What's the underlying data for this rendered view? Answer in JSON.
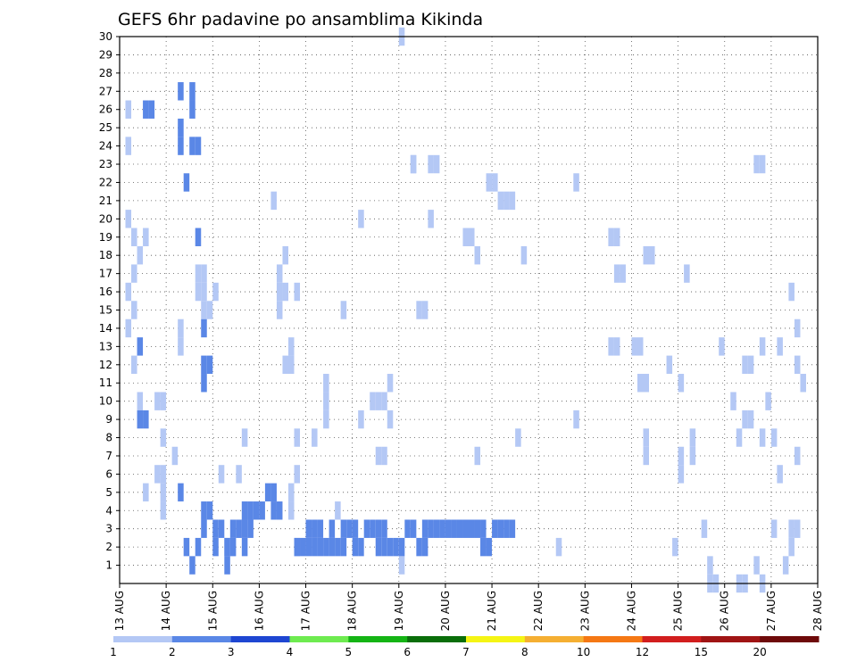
{
  "chart_data": {
    "type": "heatmap",
    "title": "GEFS 6hr padavine po ansamblima Kikinda",
    "x_axis": {
      "range": [
        "13 AUG 00Z",
        "28 AUG 00Z"
      ],
      "tick_labels": [
        "13 AUG",
        "14 AUG",
        "15 AUG",
        "16 AUG",
        "17 AUG",
        "18 AUG",
        "19 AUG",
        "20 AUG",
        "21 AUG",
        "22 AUG",
        "23 AUG",
        "24 AUG",
        "25 AUG",
        "26 AUG",
        "27 AUG",
        "28 AUG"
      ],
      "step_hours": 6
    },
    "y_axis": {
      "range": [
        0,
        30
      ],
      "tick_labels": [
        "1",
        "2",
        "3",
        "4",
        "5",
        "6",
        "7",
        "8",
        "9",
        "10",
        "11",
        "12",
        "13",
        "14",
        "15",
        "16",
        "17",
        "18",
        "19",
        "20",
        "21",
        "22",
        "23",
        "24",
        "25",
        "26",
        "27",
        "28",
        "29",
        "30"
      ]
    },
    "grid": "dotted",
    "legend": {
      "placement": "bottom",
      "labels": [
        "1",
        "2",
        "3",
        "4",
        "5",
        "6",
        "7",
        "8",
        "10",
        "12",
        "15",
        "20"
      ],
      "colors": [
        "#b4c8f5",
        "#5a87e6",
        "#1e46d2",
        "#6eeb50",
        "#14b414",
        "#0a6e0a",
        "#f5f514",
        "#f5af32",
        "#f57814",
        "#d21e1e",
        "#a01414",
        "#6e0a0a"
      ]
    },
    "cells": [
      [
        1,
        1,
        14
      ],
      [
        1,
        1,
        16
      ],
      [
        1,
        1,
        20
      ],
      [
        1,
        1,
        24
      ],
      [
        1,
        1,
        26
      ],
      [
        1,
        2,
        12
      ],
      [
        1,
        2,
        15
      ],
      [
        1,
        2,
        17
      ],
      [
        1,
        2,
        19
      ],
      [
        1,
        3,
        10
      ],
      [
        1,
        3,
        18
      ],
      [
        1,
        4,
        5
      ],
      [
        1,
        4,
        19
      ],
      [
        1,
        6,
        10
      ],
      [
        1,
        7,
        10
      ],
      [
        1,
        6,
        6
      ],
      [
        1,
        7,
        6
      ],
      [
        1,
        7,
        4
      ],
      [
        1,
        7,
        5
      ],
      [
        1,
        7,
        8
      ],
      [
        1,
        9,
        7
      ],
      [
        1,
        10,
        14
      ],
      [
        1,
        10,
        13
      ],
      [
        1,
        13,
        16
      ],
      [
        1,
        14,
        16
      ],
      [
        1,
        14,
        15
      ],
      [
        1,
        15,
        15
      ],
      [
        1,
        13,
        17
      ],
      [
        1,
        14,
        17
      ],
      [
        1,
        16,
        16
      ],
      [
        1,
        17,
        6
      ],
      [
        1,
        18,
        2
      ],
      [
        1,
        19,
        2
      ],
      [
        1,
        20,
        3
      ],
      [
        1,
        20,
        6
      ],
      [
        1,
        21,
        4
      ],
      [
        1,
        21,
        8
      ],
      [
        1,
        26,
        21
      ],
      [
        1,
        27,
        15
      ],
      [
        1,
        27,
        16
      ],
      [
        1,
        27,
        17
      ],
      [
        1,
        28,
        18
      ],
      [
        1,
        28,
        12
      ],
      [
        1,
        28,
        16
      ],
      [
        1,
        29,
        13
      ],
      [
        1,
        29,
        12
      ],
      [
        1,
        29,
        4
      ],
      [
        1,
        29,
        5
      ],
      [
        1,
        30,
        8
      ],
      [
        1,
        30,
        16
      ],
      [
        1,
        30,
        2
      ],
      [
        1,
        30,
        6
      ],
      [
        1,
        33,
        8
      ],
      [
        1,
        35,
        10
      ],
      [
        1,
        35,
        9
      ],
      [
        1,
        35,
        11
      ],
      [
        1,
        37,
        4
      ],
      [
        1,
        38,
        15
      ],
      [
        1,
        41,
        9
      ],
      [
        1,
        41,
        20
      ],
      [
        1,
        43,
        10
      ],
      [
        1,
        44,
        10
      ],
      [
        1,
        45,
        10
      ],
      [
        1,
        45,
        7
      ],
      [
        1,
        44,
        7
      ],
      [
        1,
        46,
        9
      ],
      [
        1,
        46,
        11
      ],
      [
        1,
        48,
        30
      ],
      [
        1,
        48,
        1
      ],
      [
        1,
        50,
        23
      ],
      [
        1,
        50,
        23
      ],
      [
        1,
        51,
        15
      ],
      [
        1,
        52,
        15
      ],
      [
        1,
        53,
        23
      ],
      [
        1,
        53,
        20
      ],
      [
        1,
        54,
        23
      ],
      [
        1,
        59,
        19
      ],
      [
        1,
        60,
        19
      ],
      [
        1,
        61,
        7
      ],
      [
        1,
        61,
        18
      ],
      [
        1,
        63,
        22
      ],
      [
        1,
        64,
        22
      ],
      [
        1,
        65,
        21
      ],
      [
        1,
        66,
        21
      ],
      [
        1,
        67,
        21
      ],
      [
        1,
        68,
        8
      ],
      [
        1,
        69,
        18
      ],
      [
        1,
        75,
        2
      ],
      [
        1,
        78,
        9
      ],
      [
        1,
        78,
        22
      ],
      [
        1,
        84,
        19
      ],
      [
        1,
        85,
        19
      ],
      [
        1,
        85,
        17
      ],
      [
        1,
        86,
        17
      ],
      [
        1,
        85,
        13
      ],
      [
        1,
        84,
        13
      ],
      [
        1,
        89,
        13
      ],
      [
        1,
        88,
        13
      ],
      [
        1,
        90,
        7
      ],
      [
        1,
        90,
        8
      ],
      [
        1,
        90,
        11
      ],
      [
        1,
        89,
        11
      ],
      [
        1,
        90,
        18
      ],
      [
        1,
        91,
        18
      ],
      [
        1,
        96,
        7
      ],
      [
        1,
        96,
        6
      ],
      [
        1,
        94,
        12
      ],
      [
        1,
        96,
        11
      ],
      [
        1,
        106,
        8
      ],
      [
        1,
        103,
        13
      ],
      [
        1,
        109,
        23
      ],
      [
        1,
        109,
        1
      ],
      [
        1,
        110,
        13
      ],
      [
        1,
        110,
        23
      ],
      [
        1,
        113,
        13
      ],
      [
        1,
        115,
        16
      ],
      [
        1,
        115,
        3
      ],
      [
        1,
        116,
        3
      ],
      [
        1,
        117,
        11
      ],
      [
        1,
        116,
        14
      ],
      [
        1,
        116,
        12
      ],
      [
        1,
        95,
        2
      ],
      [
        1,
        98,
        8
      ],
      [
        1,
        100,
        3
      ],
      [
        1,
        98,
        7
      ],
      [
        1,
        97,
        17
      ],
      [
        1,
        105,
        10
      ],
      [
        1,
        112,
        8
      ],
      [
        1,
        107,
        12
      ],
      [
        1,
        108,
        12
      ],
      [
        1,
        107,
        9
      ],
      [
        1,
        108,
        9
      ],
      [
        1,
        111,
        10
      ],
      [
        1,
        113,
        6
      ],
      [
        1,
        115,
        2
      ],
      [
        1,
        116,
        7
      ],
      [
        1,
        101,
        1
      ],
      [
        1,
        110,
        8
      ],
      [
        1,
        114,
        1
      ],
      [
        1,
        110,
        0
      ],
      [
        1,
        101,
        0
      ],
      [
        1,
        102,
        0
      ],
      [
        1,
        106,
        0
      ],
      [
        1,
        107,
        0
      ],
      [
        1,
        112,
        3
      ],
      [
        2,
        4,
        26
      ],
      [
        2,
        5,
        26
      ],
      [
        2,
        10,
        24
      ],
      [
        2,
        10,
        25
      ],
      [
        2,
        10,
        27
      ],
      [
        2,
        11,
        22
      ],
      [
        2,
        12,
        24
      ],
      [
        2,
        12,
        26
      ],
      [
        2,
        12,
        27
      ],
      [
        2,
        13,
        24
      ],
      [
        2,
        13,
        19
      ],
      [
        2,
        14,
        14
      ],
      [
        2,
        14,
        11
      ],
      [
        2,
        14,
        12
      ],
      [
        2,
        15,
        12
      ],
      [
        2,
        3,
        13
      ],
      [
        2,
        3,
        9
      ],
      [
        2,
        4,
        9
      ],
      [
        2,
        10,
        5
      ],
      [
        2,
        11,
        2
      ],
      [
        2,
        12,
        1
      ],
      [
        2,
        13,
        2
      ],
      [
        2,
        14,
        3
      ],
      [
        2,
        14,
        4
      ],
      [
        2,
        15,
        4
      ],
      [
        2,
        16,
        3
      ],
      [
        2,
        17,
        3
      ],
      [
        2,
        16,
        2
      ],
      [
        2,
        18,
        1
      ],
      [
        2,
        18,
        2
      ],
      [
        2,
        19,
        2
      ],
      [
        2,
        19,
        3
      ],
      [
        2,
        20,
        3
      ],
      [
        2,
        21,
        2
      ],
      [
        2,
        21,
        3
      ],
      [
        2,
        21,
        4
      ],
      [
        2,
        22,
        3
      ],
      [
        2,
        22,
        4
      ],
      [
        2,
        23,
        4
      ],
      [
        2,
        24,
        4
      ],
      [
        2,
        25,
        5
      ],
      [
        2,
        26,
        5
      ],
      [
        2,
        26,
        4
      ],
      [
        2,
        27,
        4
      ],
      [
        2,
        30,
        2
      ],
      [
        2,
        31,
        2
      ],
      [
        2,
        32,
        2
      ],
      [
        2,
        32,
        3
      ],
      [
        2,
        33,
        2
      ],
      [
        2,
        33,
        3
      ],
      [
        2,
        34,
        3
      ],
      [
        2,
        34,
        2
      ],
      [
        2,
        35,
        2
      ],
      [
        2,
        36,
        3
      ],
      [
        2,
        36,
        2
      ],
      [
        2,
        37,
        2
      ],
      [
        2,
        38,
        3
      ],
      [
        2,
        38,
        2
      ],
      [
        2,
        39,
        3
      ],
      [
        2,
        40,
        3
      ],
      [
        2,
        40,
        2
      ],
      [
        2,
        41,
        2
      ],
      [
        2,
        42,
        3
      ],
      [
        2,
        43,
        3
      ],
      [
        2,
        44,
        2
      ],
      [
        2,
        44,
        3
      ],
      [
        2,
        45,
        2
      ],
      [
        2,
        45,
        3
      ],
      [
        2,
        46,
        2
      ],
      [
        2,
        47,
        2
      ],
      [
        2,
        48,
        2
      ],
      [
        2,
        49,
        3
      ],
      [
        2,
        50,
        3
      ],
      [
        2,
        51,
        2
      ],
      [
        2,
        52,
        2
      ],
      [
        2,
        52,
        3
      ],
      [
        2,
        53,
        3
      ],
      [
        2,
        54,
        3
      ],
      [
        2,
        55,
        3
      ],
      [
        2,
        56,
        3
      ],
      [
        2,
        57,
        3
      ],
      [
        2,
        58,
        3
      ],
      [
        2,
        59,
        3
      ],
      [
        2,
        60,
        3
      ],
      [
        2,
        61,
        3
      ],
      [
        2,
        62,
        2
      ],
      [
        2,
        62,
        3
      ],
      [
        2,
        63,
        2
      ],
      [
        2,
        64,
        3
      ],
      [
        2,
        65,
        3
      ],
      [
        2,
        66,
        3
      ],
      [
        2,
        67,
        3
      ]
    ],
    "note": "cells: [legend_index, time_index (6h steps from 13 AUG 00Z), member]"
  }
}
